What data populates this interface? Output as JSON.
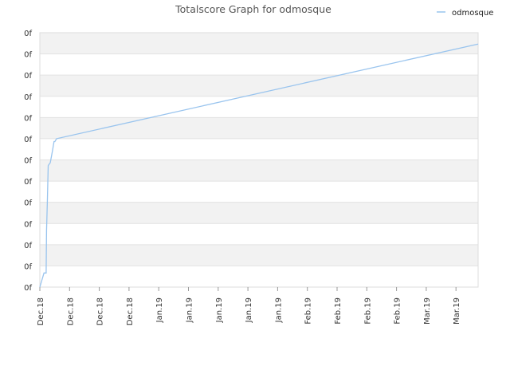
{
  "chart_data": {
    "type": "line",
    "title": "Totalscore Graph for odmosque",
    "legend_position": "top-right",
    "grid": true,
    "y_tick_labels": [
      "0f",
      "0f",
      "0f",
      "0f",
      "0f",
      "0f",
      "0f",
      "0f",
      "0f",
      "0f",
      "0f",
      "0f",
      "0f"
    ],
    "x_tick_labels": [
      "Dec.18",
      "Dec.18",
      "Dec.18",
      "Dec.18",
      "Jan.19",
      "Jan.19",
      "Jan.19",
      "Jan.19",
      "Jan.19",
      "Feb.19",
      "Feb.19",
      "Feb.19",
      "Feb.19",
      "Mar.19",
      "Mar.19"
    ],
    "series": [
      {
        "name": "odmosque",
        "color": "#99c4ee",
        "x": [
          0,
          1,
          1.5,
          1.6,
          1.8,
          2,
          2.5,
          3,
          3.4,
          3.6,
          4,
          105
        ],
        "y": [
          0,
          1,
          1,
          4,
          6,
          8.6,
          8.8,
          9.6,
          10.3,
          10.3,
          10.5,
          17.2
        ]
      }
    ],
    "x_range": [
      0,
      105
    ],
    "y_range": [
      0,
      18
    ]
  }
}
